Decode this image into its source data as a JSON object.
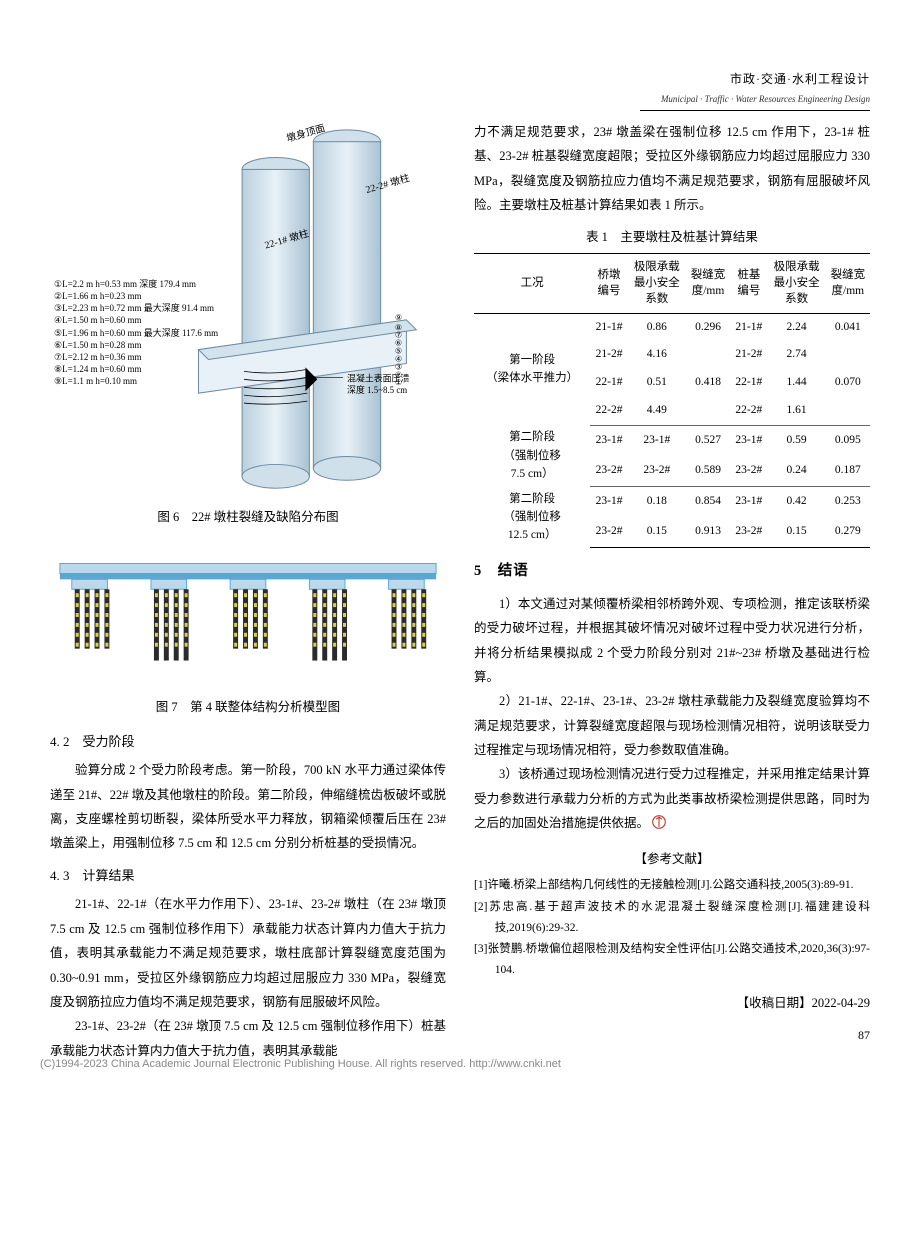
{
  "header": {
    "category_cn": "市政·交通·水利工程设计",
    "category_en": "Municipal · Traffic · Water Resources Engineering Design"
  },
  "figures": {
    "fig6": {
      "caption": "图 6　22# 墩柱裂缝及缺陷分布图",
      "labels": {
        "top": "墩身顶面",
        "pier_right": "22-2# 墩柱",
        "pier_left": "22-1# 墩柱",
        "concrete_note": "混凝土表面压溃\n深度 1.5~8.5 cm",
        "crack_list": [
          "①L=2.2 m  h=0.53 mm  深度 179.4 mm",
          "②L=1.66 m  h=0.23 mm",
          "③L=2.23 m  h=0.72 mm  最大深度 91.4 mm",
          "④L=1.50 m  h=0.60 mm",
          "⑤L=1.96 m  h=0.60 mm  最大深度 117.6 mm",
          "⑥L=1.50 m  h=0.28 mm",
          "⑦L=2.12 m  h=0.36 mm",
          "⑧L=1.24 m  h=0.60 mm",
          "⑨L=1.1 m  h=0.10 mm"
        ],
        "num_markers": [
          "①",
          "②",
          "③",
          "④",
          "⑤",
          "⑥",
          "⑦",
          "⑧",
          "⑨"
        ]
      },
      "colors": {
        "cylinder_fill": "#d8e6ef",
        "cylinder_edge": "#6d8aa0",
        "cap_fill": "#c9dbe8"
      }
    },
    "fig7": {
      "caption": "图 7　第 4 联整体结构分析模型图",
      "colors": {
        "deck": "#5aa7d6",
        "deck_light": "#bcd9ec",
        "piles_outer": "#2b2b2b",
        "piles_mark": "#d9d14a",
        "ground": "#e6e6e6"
      },
      "pier_groups": 5,
      "piles_per_group": 4
    }
  },
  "sections": {
    "s4_2": {
      "num": "4. 2",
      "title": "受力阶段"
    },
    "s4_3": {
      "num": "4. 3",
      "title": "计算结果"
    },
    "s5": {
      "num": "5",
      "title": "结语"
    }
  },
  "paragraphs": {
    "p_right_top": "力不满足规范要求，23# 墩盖梁在强制位移 12.5 cm 作用下，23-1# 桩基、23-2# 桩基裂缝宽度超限；受拉区外缘钢筋应力均超过屈服应力 330 MPa，裂缝宽度及钢筋拉应力值均不满足规范要求，钢筋有屈服破坏风险。主要墩柱及桩基计算结果如表 1 所示。",
    "p4_2": "验算分成 2 个受力阶段考虑。第一阶段，700 kN 水平力通过梁体传递至 21#、22# 墩及其他墩柱的阶段。第二阶段，伸缩缝梳齿板破坏或脱离，支座螺栓剪切断裂，梁体所受水平力释放，钢箱梁倾覆后压在 23# 墩盖梁上，用强制位移 7.5 cm 和 12.5 cm 分别分析桩基的受损情况。",
    "p4_3a": "21-1#、22-1#（在水平力作用下）、23-1#、23-2# 墩柱（在 23# 墩顶 7.5 cm 及 12.5 cm 强制位移作用下）承载能力状态计算内力值大于抗力值，表明其承载能力不满足规范要求，墩柱底部计算裂缝宽度范围为 0.30~0.91 mm，受拉区外缘钢筋应力均超过屈服应力 330 MPa，裂缝宽度及钢筋拉应力值均不满足规范要求，钢筋有屈服破坏风险。",
    "p4_3b": "23-1#、23-2#（在 23# 墩顶 7.5 cm 及 12.5 cm 强制位移作用下）桩基承载能力状态计算内力值大于抗力值，表明其承载能",
    "p5_1": "1）本文通过对某倾覆桥梁相邻桥跨外观、专项检测，推定该联桥梁的受力破坏过程，并根据其破坏情况对破坏过程中受力状况进行分析，并将分析结果模拟成 2 个受力阶段分别对 21#~23# 桥墩及基础进行检算。",
    "p5_2": "2）21-1#、22-1#、23-1#、23-2# 墩柱承载能力及裂缝宽度验算均不满足规范要求，计算裂缝宽度超限与现场检测情况相符，说明该联受力过程推定与现场情况相符，受力参数取值准确。",
    "p5_3": "3）该桥通过现场检测情况进行受力过程推定，并采用推定结果计算受力参数进行承载力分析的方式为此类事故桥梁检测提供思路，同时为之后的加固处治措施提供依据。"
  },
  "table1": {
    "caption": "表 1　主要墩柱及桩基计算结果",
    "columns": [
      "工况",
      "桥墩编号",
      "极限承载最小安全系数",
      "裂缝宽度/mm",
      "桩基编号",
      "极限承载最小安全系数",
      "裂缝宽度/mm"
    ],
    "groups": [
      {
        "name": "第一阶段（梁体水平推力）",
        "rows": [
          [
            "21-1#",
            "0.86",
            "0.296",
            "21-1#",
            "2.24",
            "0.041"
          ],
          [
            "21-2#",
            "4.16",
            "",
            "21-2#",
            "2.74",
            ""
          ],
          [
            "22-1#",
            "0.51",
            "0.418",
            "22-1#",
            "1.44",
            "0.070"
          ],
          [
            "22-2#",
            "4.49",
            "",
            "22-2#",
            "1.61",
            ""
          ]
        ]
      },
      {
        "name": "第二阶段（强制位移 7.5 cm）",
        "rows": [
          [
            "23-1#",
            "23-1#",
            "0.527",
            "23-1#",
            "0.59",
            "0.095"
          ],
          [
            "23-2#",
            "23-2#",
            "0.589",
            "23-2#",
            "0.24",
            "0.187"
          ]
        ]
      },
      {
        "name": "第二阶段（强制位移 12.5 cm）",
        "rows": [
          [
            "23-1#",
            "0.18",
            "0.854",
            "23-1#",
            "0.42",
            "0.253"
          ],
          [
            "23-2#",
            "0.15",
            "0.913",
            "23-2#",
            "0.15",
            "0.279"
          ]
        ]
      }
    ]
  },
  "references": {
    "title": "【参考文献】",
    "items": [
      "[1]许曦.桥梁上部结构几何线性的无接触检测[J].公路交通科技,2005(3):89-91.",
      "[2]苏忠高.基于超声波技术的水泥混凝土裂缝深度检测[J].福建建设科技,2019(6):29-32.",
      "[3]张赞鹏.桥墩偏位超限检测及结构安全性评估[J].公路交通技术,2020,36(3):97-104."
    ]
  },
  "receipt": "【收稿日期】2022-04-29",
  "page_number": "87",
  "footer": "(C)1994-2023 China Academic Journal Electronic Publishing House. All rights reserved.    http://www.cnki.net"
}
